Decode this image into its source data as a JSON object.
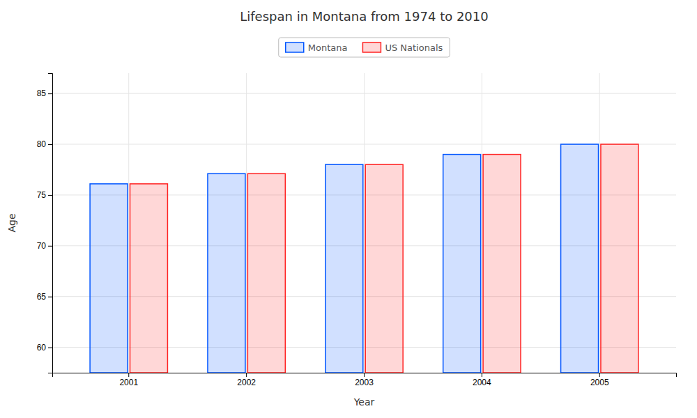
{
  "chart_data": {
    "type": "bar",
    "title": "Lifespan in Montana from 1974 to 2010",
    "xlabel": "Year",
    "ylabel": "Age",
    "categories": [
      "2001",
      "2002",
      "2003",
      "2004",
      "2005"
    ],
    "series": [
      {
        "name": "Montana",
        "color": "#0055ff",
        "values": [
          76.1,
          77.1,
          78.0,
          79.0,
          80.0
        ]
      },
      {
        "name": "US Nationals",
        "color": "#ff2222",
        "values": [
          76.1,
          77.1,
          78.0,
          79.0,
          80.0
        ]
      }
    ],
    "ylim": [
      57.5,
      87
    ],
    "yticks": [
      60,
      65,
      70,
      75,
      80,
      85
    ],
    "grid": true,
    "legend": "top"
  }
}
